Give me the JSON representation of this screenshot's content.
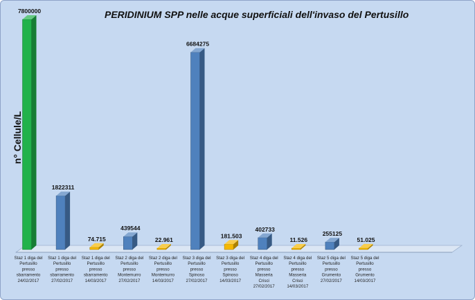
{
  "chart_data": {
    "type": "bar",
    "title": "PERIDINIUM SPP  nelle acque superficiali dell'invaso del Pertusillo",
    "ylabel": "n° Cellule/L",
    "xlabel": "",
    "ylim": [
      0,
      7800000
    ],
    "grid": false,
    "legend": "none",
    "categories": [
      [
        "Staz 1 diga del",
        "Pertusillo",
        "presso",
        "sbarramento",
        "24/02/2017"
      ],
      [
        "Staz 1 diga del",
        "Pertusillo",
        "presso",
        "sbarramento",
        "27/02/2017"
      ],
      [
        "Staz 1 diga del",
        "Pertusillo",
        "presso",
        "sbarramento",
        "14/03/2017"
      ],
      [
        "Staz 2 diga del",
        "Pertusillo",
        "presso",
        "Montemurro",
        "27/02/2017"
      ],
      [
        "Staz 2 diga del",
        "Pertusillo",
        "presso",
        "Montemurro",
        "14/03/2017"
      ],
      [
        "Staz 3 diga del",
        "Pertusillo",
        "presso",
        "Spinoso",
        "27/02/2017"
      ],
      [
        "Staz 3 diga del",
        "Pertusillo",
        "presso",
        "Spinoso",
        "14/03/2017"
      ],
      [
        "Staz 4 diga del",
        "Pertusillo",
        "presso",
        "Masseria",
        "Crisci",
        "27/02/2017"
      ],
      [
        "Staz 4 diga del",
        "Pertusillo",
        "presso",
        "Masseria",
        "Crisci",
        "14/03/2017"
      ],
      [
        "Staz 5 diga del",
        "Pertusillo",
        "presso",
        "Grumento",
        "27/02/2017"
      ],
      [
        "Staz 5 diga del",
        "Pertusillo",
        "presso",
        "Grumento",
        "14/03/2017"
      ]
    ],
    "values": [
      7800000,
      1822311,
      74715,
      439544,
      22961,
      6684275,
      181503,
      402733,
      11526,
      255125,
      51025
    ],
    "value_labels": [
      "7800000",
      "1822311",
      "74.715",
      "439544",
      "22.961",
      "6684275",
      "181.503",
      "402733",
      "11.526",
      "255125",
      "51.025"
    ],
    "bar_colors": [
      "#21b24b",
      "#4f81bd",
      "#f5b800",
      "#4f81bd",
      "#f5b800",
      "#4f81bd",
      "#f5b800",
      "#4f81bd",
      "#f5b800",
      "#4f81bd",
      "#f5b800"
    ]
  },
  "colors": {
    "background": "#c6d9f1",
    "floor": "#dbe6f4",
    "green": "#21b24b",
    "blue": "#4f81bd",
    "yellow": "#f5b800"
  }
}
